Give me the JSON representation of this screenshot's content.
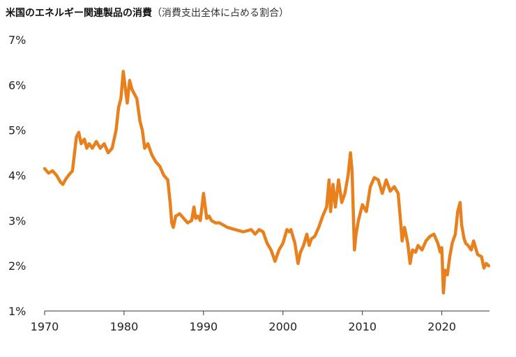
{
  "title": "米国のエネルギー関連製品の消費",
  "subtitle": "（消費支出全体に占める割合）",
  "colors": {
    "line": "#E8801E",
    "axis": "#333333",
    "text": "#222222"
  },
  "chart_data": {
    "type": "line",
    "title": "米国のエネルギー関連製品の消費",
    "subtitle": "（消費支出全体に占める割合）",
    "xlabel": "",
    "ylabel": "",
    "xlim": [
      1970,
      2026
    ],
    "ylim": [
      1,
      7
    ],
    "x_ticks": [
      1970,
      1980,
      1990,
      2000,
      2010,
      2020
    ],
    "x_tick_labels": [
      "1970",
      "1980",
      "1990",
      "2000",
      "2010",
      "2020"
    ],
    "y_ticks": [
      1,
      2,
      3,
      4,
      5,
      6,
      7
    ],
    "y_tick_labels": [
      "1%",
      "2%",
      "3%",
      "4%",
      "5%",
      "6%",
      "7%"
    ],
    "grid": false,
    "legend": "none",
    "series": [
      {
        "x": [
          1970.0,
          1970.5,
          1971.0,
          1971.5,
          1972.0,
          1972.3,
          1972.6,
          1973.0,
          1973.5,
          1974.0,
          1974.3,
          1974.6,
          1975.0,
          1975.3,
          1975.6,
          1976.0,
          1976.5,
          1977.0,
          1977.5,
          1978.0,
          1978.5,
          1979.0,
          1979.3,
          1979.6,
          1979.9,
          1980.1,
          1980.4,
          1980.7,
          1981.0,
          1981.3,
          1981.6,
          1982.0,
          1982.3,
          1982.6,
          1983.0,
          1983.5,
          1984.0,
          1984.5,
          1985.0,
          1985.5,
          1985.8,
          1986.0,
          1986.2,
          1986.5,
          1987.0,
          1987.5,
          1988.0,
          1988.5,
          1988.8,
          1989.0,
          1989.3,
          1989.6,
          1990.0,
          1990.4,
          1990.7,
          1991.0,
          1991.5,
          1992.0,
          1993.0,
          1994.0,
          1995.0,
          1996.0,
          1996.5,
          1997.0,
          1997.5,
          1998.0,
          1998.5,
          1999.0,
          1999.5,
          2000.0,
          2000.5,
          2000.8,
          2001.0,
          2001.5,
          2001.9,
          2002.2,
          2002.6,
          2003.0,
          2003.3,
          2003.6,
          2004.0,
          2004.5,
          2005.0,
          2005.5,
          2005.8,
          2006.0,
          2006.3,
          2006.6,
          2007.0,
          2007.4,
          2007.8,
          2008.2,
          2008.5,
          2008.7,
          2008.9,
          2009.0,
          2009.2,
          2009.5,
          2010.0,
          2010.5,
          2011.0,
          2011.5,
          2012.0,
          2012.5,
          2013.0,
          2013.5,
          2014.0,
          2014.5,
          2014.8,
          2015.0,
          2015.3,
          2015.7,
          2016.0,
          2016.3,
          2016.7,
          2017.0,
          2017.5,
          2018.0,
          2018.5,
          2019.0,
          2019.5,
          2019.8,
          2020.0,
          2020.2,
          2020.4,
          2020.7,
          2021.0,
          2021.3,
          2021.7,
          2022.0,
          2022.3,
          2022.5,
          2022.8,
          2023.0,
          2023.3,
          2023.7,
          2024.0,
          2024.5,
          2025.0,
          2025.3,
          2025.6,
          2025.9
        ],
        "values": [
          4.15,
          4.05,
          4.1,
          4.0,
          3.85,
          3.8,
          3.9,
          4.0,
          4.1,
          4.85,
          4.95,
          4.7,
          4.8,
          4.6,
          4.7,
          4.6,
          4.75,
          4.6,
          4.7,
          4.5,
          4.6,
          5.0,
          5.5,
          5.7,
          6.3,
          6.0,
          5.6,
          6.1,
          5.9,
          5.8,
          5.7,
          5.2,
          5.0,
          4.6,
          4.7,
          4.45,
          4.3,
          4.2,
          4.0,
          3.9,
          3.4,
          2.95,
          2.85,
          3.1,
          3.15,
          3.05,
          2.95,
          3.0,
          3.3,
          3.05,
          3.1,
          3.0,
          3.6,
          3.05,
          3.1,
          3.0,
          2.95,
          2.95,
          2.85,
          2.8,
          2.75,
          2.8,
          2.7,
          2.8,
          2.75,
          2.5,
          2.35,
          2.1,
          2.35,
          2.5,
          2.8,
          2.75,
          2.8,
          2.5,
          2.05,
          2.3,
          2.45,
          2.7,
          2.45,
          2.6,
          2.65,
          2.85,
          3.1,
          3.3,
          3.9,
          3.2,
          3.8,
          3.3,
          3.9,
          3.4,
          3.6,
          4.0,
          4.5,
          4.1,
          2.9,
          2.35,
          2.7,
          3.0,
          3.35,
          3.2,
          3.75,
          3.95,
          3.9,
          3.6,
          3.9,
          3.65,
          3.75,
          3.6,
          3.0,
          2.55,
          2.85,
          2.5,
          2.05,
          2.35,
          2.3,
          2.45,
          2.35,
          2.55,
          2.65,
          2.7,
          2.5,
          2.3,
          2.4,
          1.4,
          1.9,
          1.8,
          2.2,
          2.5,
          2.7,
          3.2,
          3.4,
          2.9,
          2.6,
          2.5,
          2.45,
          2.35,
          2.55,
          2.25,
          2.2,
          1.95,
          2.05,
          2.0
        ]
      }
    ]
  }
}
